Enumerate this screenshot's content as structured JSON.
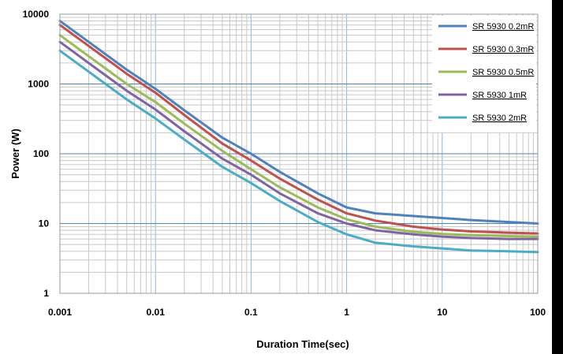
{
  "chart_data": {
    "type": "line",
    "title": "",
    "xlabel": "Duration Time(sec)",
    "ylabel": "Power (W)",
    "x_scale": "log",
    "y_scale": "log",
    "xlim": [
      0.001,
      100
    ],
    "ylim": [
      1,
      10000
    ],
    "x_ticks": [
      "0.001",
      "0.01",
      "0.1",
      "1",
      "10",
      "100"
    ],
    "y_ticks": [
      "1",
      "10",
      "100",
      "1000",
      "10000"
    ],
    "grid": true,
    "legend_position": "top-right",
    "series": [
      {
        "name": "SR 5930 0.2mR",
        "color": "#4f81bd",
        "x": [
          0.001,
          0.002,
          0.005,
          0.01,
          0.02,
          0.05,
          0.1,
          0.2,
          0.5,
          1,
          2,
          5,
          10,
          20,
          50,
          100
        ],
        "y": [
          8000,
          4000,
          1600,
          850,
          420,
          170,
          100,
          55,
          27,
          17,
          14,
          12.8,
          12,
          11.2,
          10.5,
          10
        ]
      },
      {
        "name": "SR 5930 0.3mR",
        "color": "#c0504d",
        "x": [
          0.001,
          0.002,
          0.005,
          0.01,
          0.02,
          0.05,
          0.1,
          0.2,
          0.5,
          1,
          2,
          5,
          10,
          20,
          50,
          100
        ],
        "y": [
          7000,
          3500,
          1400,
          750,
          360,
          140,
          80,
          44,
          22,
          14,
          11,
          9,
          8.2,
          7.7,
          7.4,
          7.2
        ]
      },
      {
        "name": "SR 5930 0.5mR",
        "color": "#9bbb59",
        "x": [
          0.001,
          0.002,
          0.005,
          0.01,
          0.02,
          0.05,
          0.1,
          0.2,
          0.5,
          1,
          2,
          5,
          10,
          20,
          50,
          100
        ],
        "y": [
          5000,
          2500,
          1000,
          550,
          270,
          110,
          60,
          33,
          17,
          11.5,
          9,
          7.6,
          7.1,
          6.8,
          6.6,
          6.5
        ]
      },
      {
        "name": "SR 5930  1mR",
        "color": "#8064a2",
        "x": [
          0.001,
          0.002,
          0.005,
          0.01,
          0.02,
          0.05,
          0.1,
          0.2,
          0.5,
          1,
          2,
          5,
          10,
          20,
          50,
          100
        ],
        "y": [
          4000,
          2000,
          800,
          430,
          210,
          85,
          50,
          27,
          14,
          10,
          8,
          7,
          6.5,
          6.2,
          6,
          6
        ]
      },
      {
        "name": "SR 5930  2mR",
        "color": "#4bacc6",
        "x": [
          0.001,
          0.002,
          0.005,
          0.01,
          0.02,
          0.05,
          0.1,
          0.2,
          0.5,
          1,
          2,
          5,
          10,
          20,
          50,
          100
        ],
        "y": [
          3000,
          1500,
          600,
          320,
          160,
          65,
          38,
          21,
          10.5,
          7,
          5.3,
          4.7,
          4.4,
          4.1,
          4,
          3.9
        ]
      }
    ]
  }
}
